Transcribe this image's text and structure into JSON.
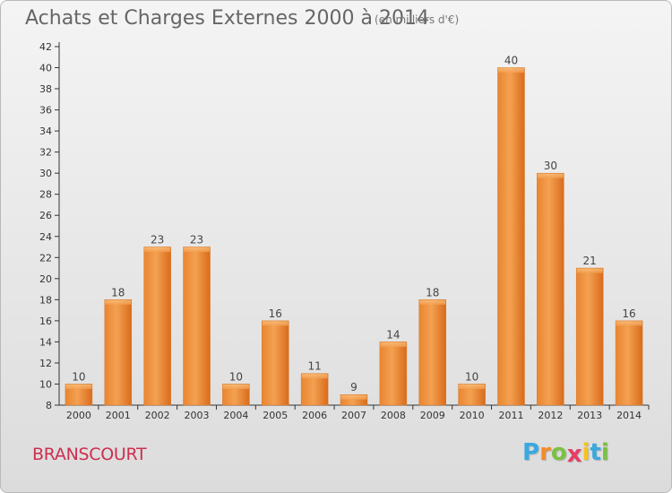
{
  "page": {
    "title": "Achats et Charges Externes 2000 à 2014",
    "unit": "(en milliers d'€)",
    "commune": "BRANSCOURT",
    "logo": {
      "text": "Proxiti",
      "letters": [
        "P",
        "r",
        "o",
        "x",
        "i",
        "t",
        "i"
      ],
      "colors": [
        "#39a9e0",
        "#f28c28",
        "#7bc143",
        "#e73d65",
        "#f6c21b",
        "#39a9e0",
        "#7bc143"
      ]
    }
  },
  "chart_data": {
    "type": "bar",
    "categories": [
      "2000",
      "2001",
      "2002",
      "2003",
      "2004",
      "2005",
      "2006",
      "2007",
      "2008",
      "2009",
      "2010",
      "2011",
      "2012",
      "2013",
      "2014"
    ],
    "values": [
      10,
      18,
      23,
      23,
      10,
      16,
      11,
      9,
      14,
      18,
      10,
      40,
      30,
      21,
      16
    ],
    "title": "Achats et Charges Externes 2000 à 2014",
    "subtitle": "(en milliers d'€)",
    "ylim": [
      8,
      42
    ],
    "y_ticks": [
      8,
      10,
      12,
      14,
      16,
      18,
      20,
      22,
      24,
      26,
      28,
      30,
      32,
      34,
      36,
      38,
      40,
      42
    ],
    "grid": false,
    "colors": {
      "bar_light": "#f7a65c",
      "bar_dark": "#d9741f",
      "bar_edge": "#d97a2a"
    }
  }
}
